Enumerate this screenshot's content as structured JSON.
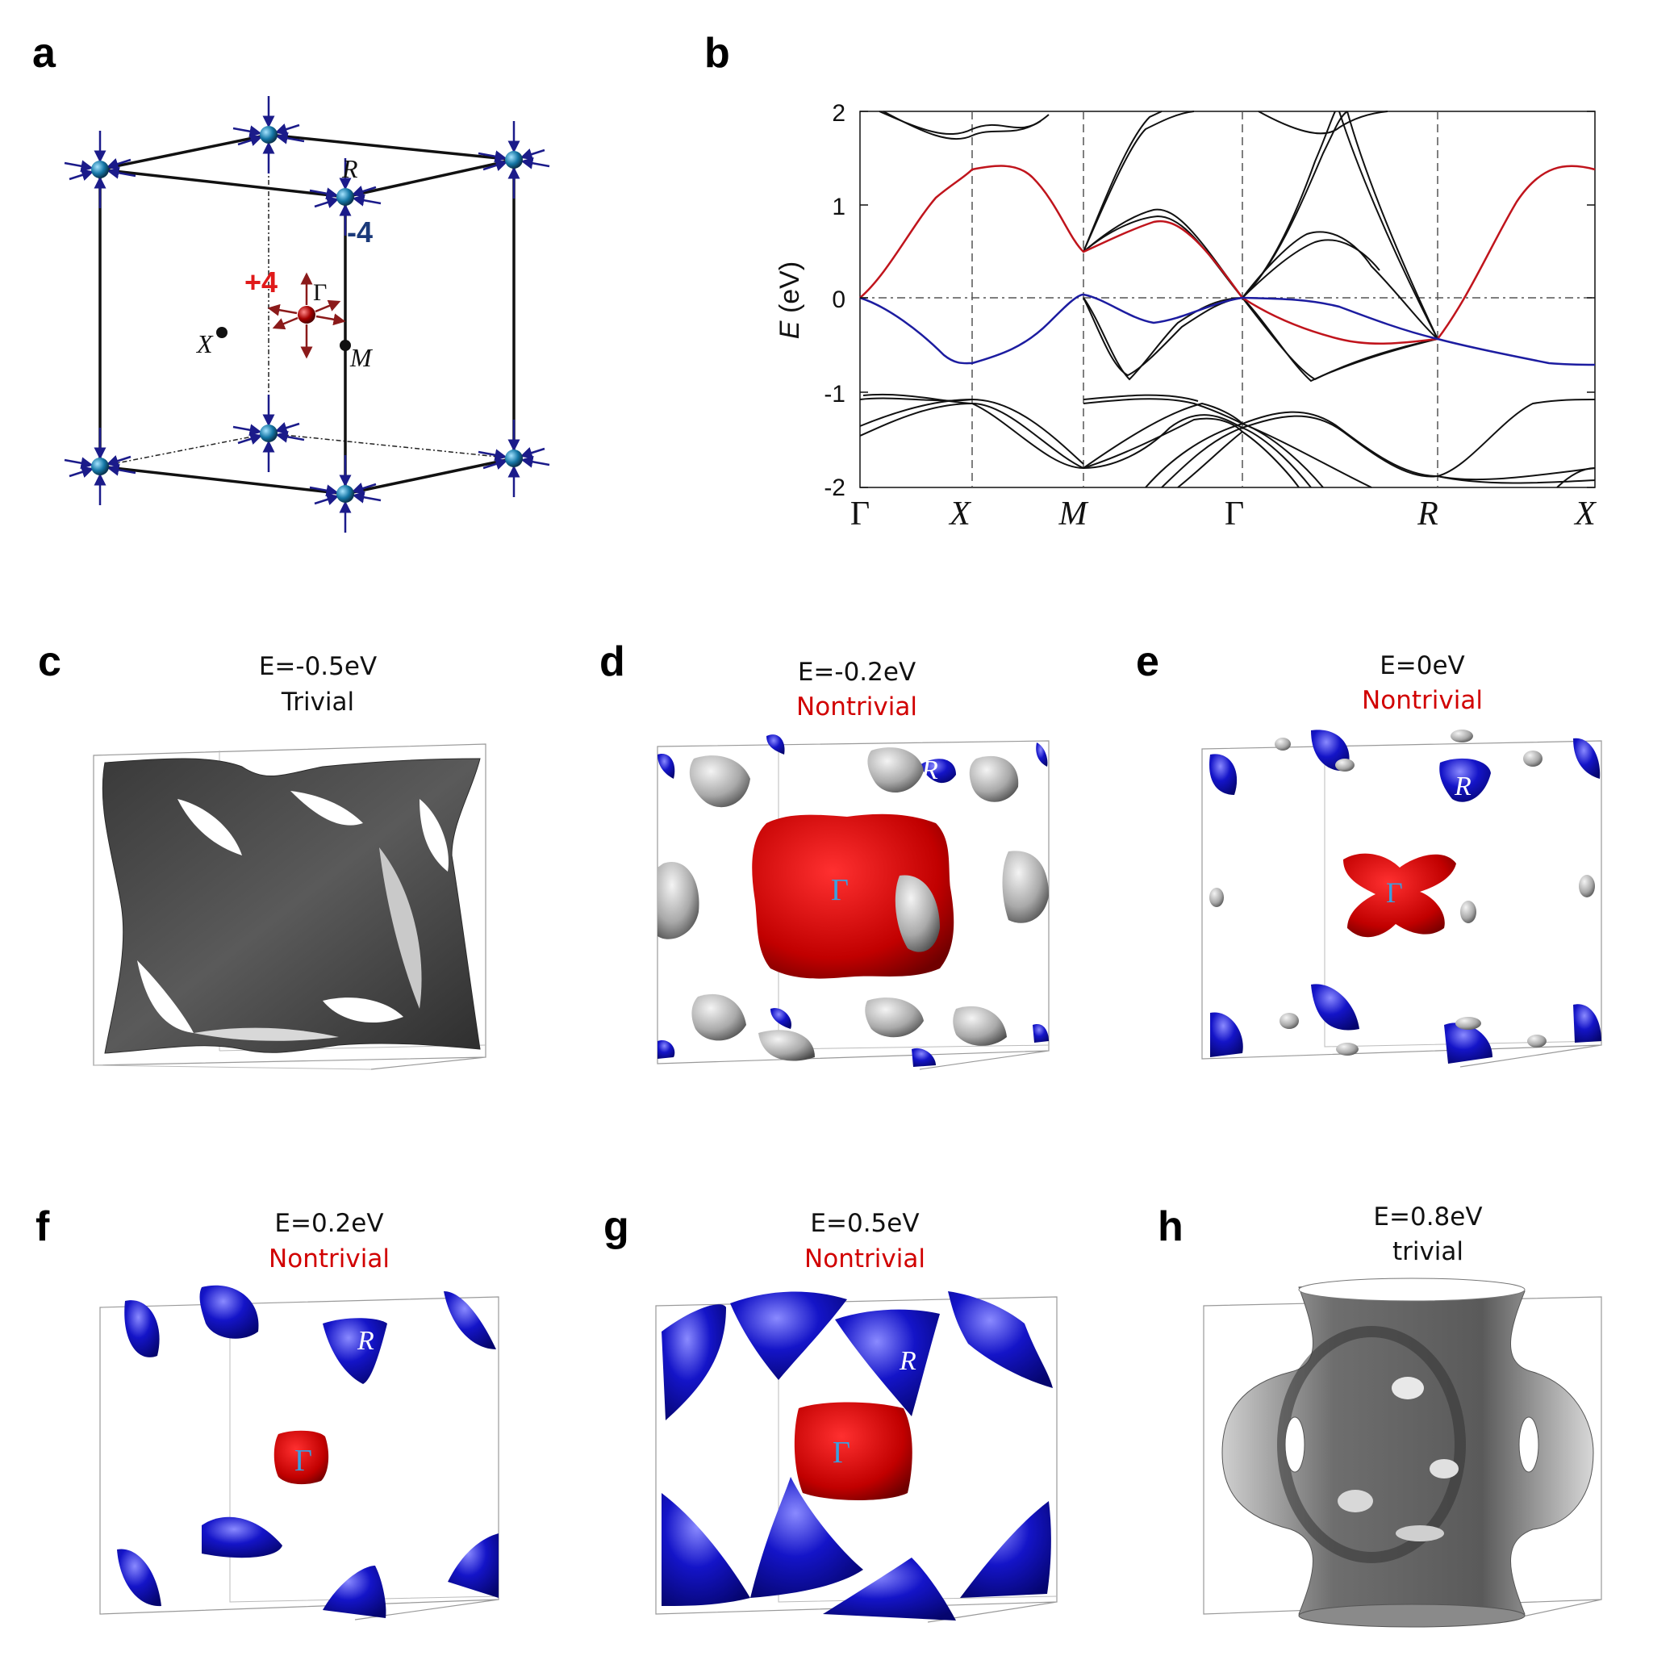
{
  "panels": {
    "a": {
      "letter": "a",
      "labels": {
        "R": "R",
        "M": "M",
        "X": "X",
        "Gamma": "Γ",
        "plus": "+4",
        "minus": "-4"
      }
    },
    "b": {
      "letter": "b",
      "ylabel_italic": "E",
      "ylabel_rest": " (eV)",
      "yticks": [
        "2",
        "1",
        "0",
        "-1",
        "-2"
      ],
      "kpoints": [
        "Γ",
        "X",
        "M",
        "Γ",
        "R",
        "X"
      ]
    },
    "c": {
      "letter": "c",
      "energy": "E=-0.5eV",
      "type": "Trivial",
      "type_color": "#111111"
    },
    "d": {
      "letter": "d",
      "energy": "E=-0.2eV",
      "type": "Nontrivial",
      "type_color": "#d10000",
      "pts": {
        "R": "R",
        "G": "Γ"
      }
    },
    "e": {
      "letter": "e",
      "energy": "E=0eV",
      "type": "Nontrivial",
      "type_color": "#d10000",
      "pts": {
        "R": "R",
        "G": "Γ"
      }
    },
    "f": {
      "letter": "f",
      "energy": "E=0.2eV",
      "type": "Nontrivial",
      "type_color": "#d10000",
      "pts": {
        "R": "R",
        "G": "Γ"
      }
    },
    "g": {
      "letter": "g",
      "energy": "E=0.5eV",
      "type": "Nontrivial",
      "type_color": "#d10000",
      "pts": {
        "R": "R",
        "G": "Γ"
      }
    },
    "h": {
      "letter": "h",
      "energy": "E=0.8eV",
      "type": "trivial",
      "type_color": "#111111"
    }
  },
  "colors": {
    "red_band": "#c0141c",
    "blue_band": "#1c1ca0",
    "blue_surface": "#0a0a9a",
    "red_surface": "#c40a0a",
    "grey_surface": "#6a6a6a",
    "gamma_label": "#3aa0e0"
  },
  "chart_data": {
    "type": "line",
    "xlabel": "",
    "ylabel": "E (eV)",
    "ylim": [
      -2,
      2
    ],
    "x_kpoints": [
      "Γ",
      "X",
      "M",
      "Γ",
      "R",
      "X"
    ],
    "series": [
      {
        "values_at_kpoints": [
          0.0,
          1.37,
          0.54,
          0.02,
          -0.41,
          1.38
        ]
      },
      {
        "values_at_kpoints": [
          0.0,
          -0.72,
          0.03,
          0.02,
          -0.41,
          -0.73
        ]
      }
    ]
  }
}
